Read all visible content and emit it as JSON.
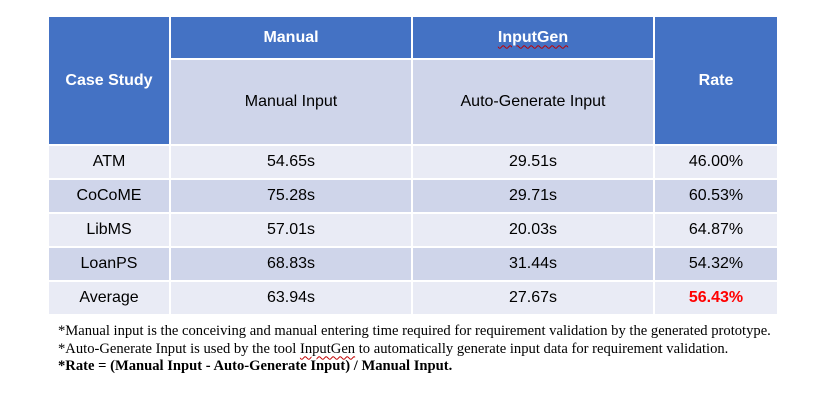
{
  "table": {
    "header": {
      "case_study": "Case Study",
      "manual": "Manual",
      "inputgen": "InputGen",
      "rate": "Rate",
      "manual_input": "Manual Input",
      "auto_generate_input": "Auto-Generate Input"
    },
    "rows": [
      {
        "case": "ATM",
        "manual": "54.65s",
        "auto": "29.51s",
        "rate": "46.00%"
      },
      {
        "case": "CoCoME",
        "manual": "75.28s",
        "auto": "29.71s",
        "rate": "60.53%"
      },
      {
        "case": "LibMS",
        "manual": "57.01s",
        "auto": "20.03s",
        "rate": "64.87%"
      },
      {
        "case": "LoanPS",
        "manual": "68.83s",
        "auto": "31.44s",
        "rate": "54.32%"
      },
      {
        "case": "Average",
        "manual": "63.94s",
        "auto": "27.67s",
        "rate": "56.43%"
      }
    ]
  },
  "notes": {
    "note1": "*Manual input is the conceiving and manual entering time required for requirement validation by the generated prototype.",
    "note2_prefix": "*Auto-Generate Input is used by the tool ",
    "note2_tool": "InputGen",
    "note2_suffix": " to automatically generate input data for requirement validation.",
    "note3": "*Rate = (Manual Input - Auto-Generate Input)  / Manual Input."
  },
  "colors": {
    "header_bg": "#4472c4",
    "subheader_bg": "#cfd5ea",
    "row_light": "#e9ebf5",
    "row_dark": "#cfd5ea",
    "highlight": "#ff0000"
  }
}
